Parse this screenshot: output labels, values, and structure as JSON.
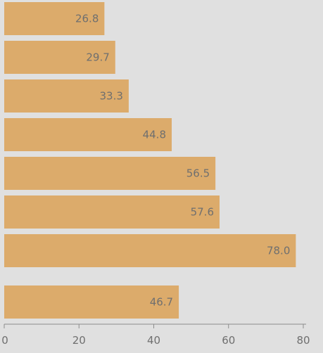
{
  "chart_data": {
    "type": "bar",
    "orientation": "horizontal",
    "values": [
      26.8,
      29.7,
      33.3,
      44.8,
      56.5,
      57.6,
      78.0,
      46.7
    ],
    "value_labels": [
      "26.8",
      "29.7",
      "33.3",
      "44.8",
      "56.5",
      "57.6",
      "78.0",
      "46.7"
    ],
    "xlim": [
      0,
      80
    ],
    "x_ticks": [
      0,
      20,
      40,
      60,
      80
    ],
    "x_tick_labels": [
      "0",
      "20",
      "40",
      "60",
      "80"
    ],
    "grid": false,
    "colors": {
      "bar": "#dcab6b",
      "background": "#e0e0e0",
      "axis": "#8c8c8c",
      "text": "#6f6f6f"
    }
  }
}
